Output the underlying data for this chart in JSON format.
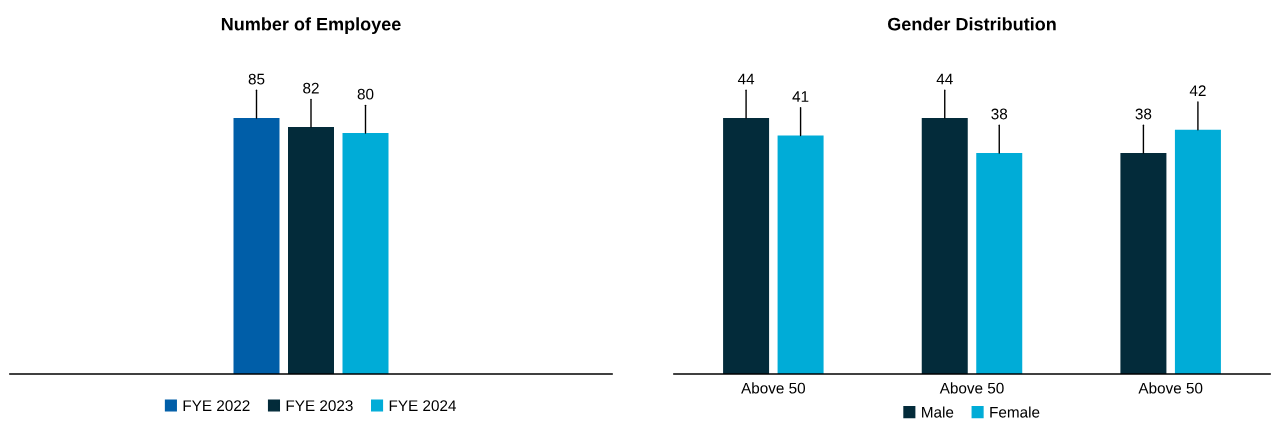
{
  "chart_data": [
    {
      "type": "bar",
      "title": "Number of Employee",
      "categories": [
        null
      ],
      "data_labels": true,
      "legend": "bottom",
      "tick_labels": false,
      "series": [
        {
          "name": "FYE 2022",
          "color": "#005ea8",
          "values": [
            85
          ]
        },
        {
          "name": "FYE 2023",
          "color": "#032b3a",
          "values": [
            82
          ]
        },
        {
          "name": "FYE 2024",
          "color": "#00acd7",
          "values": [
            80
          ]
        }
      ]
    },
    {
      "type": "bar",
      "title": "Gender Distribution",
      "categories": [
        "Above 50",
        "Above 50",
        "Above 50"
      ],
      "data_labels": true,
      "legend": "bottom",
      "tick_labels": "x",
      "series": [
        {
          "name": "Male",
          "color": "#032b3a",
          "values": [
            44,
            44,
            38
          ]
        },
        {
          "name": "Female",
          "color": "#00acd7",
          "values": [
            41,
            38,
            42
          ]
        }
      ]
    }
  ]
}
